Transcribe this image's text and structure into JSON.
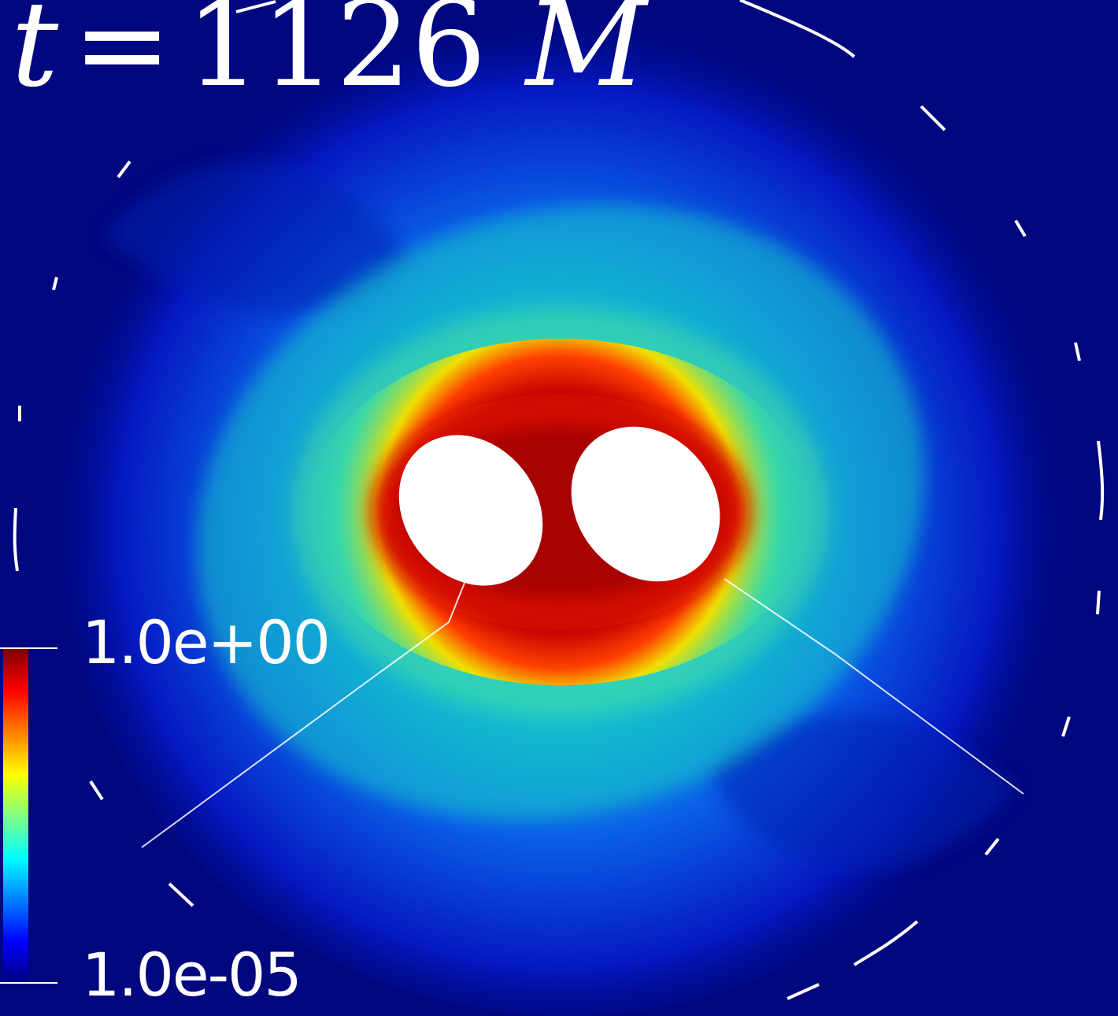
{
  "time_label": {
    "variable": "t",
    "equals": "=",
    "value": "1126",
    "unit": "M"
  },
  "colorbar": {
    "max_label": "1.0e+00",
    "min_label": "1.0e-05",
    "colormap": [
      "#00007f",
      "#0000ff",
      "#0080ff",
      "#00ffff",
      "#80ff80",
      "#ffff00",
      "#ff8000",
      "#ff0000",
      "#7f0000"
    ]
  },
  "colors": {
    "background": "#00077f",
    "core": "#b40000",
    "holes": "#ffffff"
  }
}
